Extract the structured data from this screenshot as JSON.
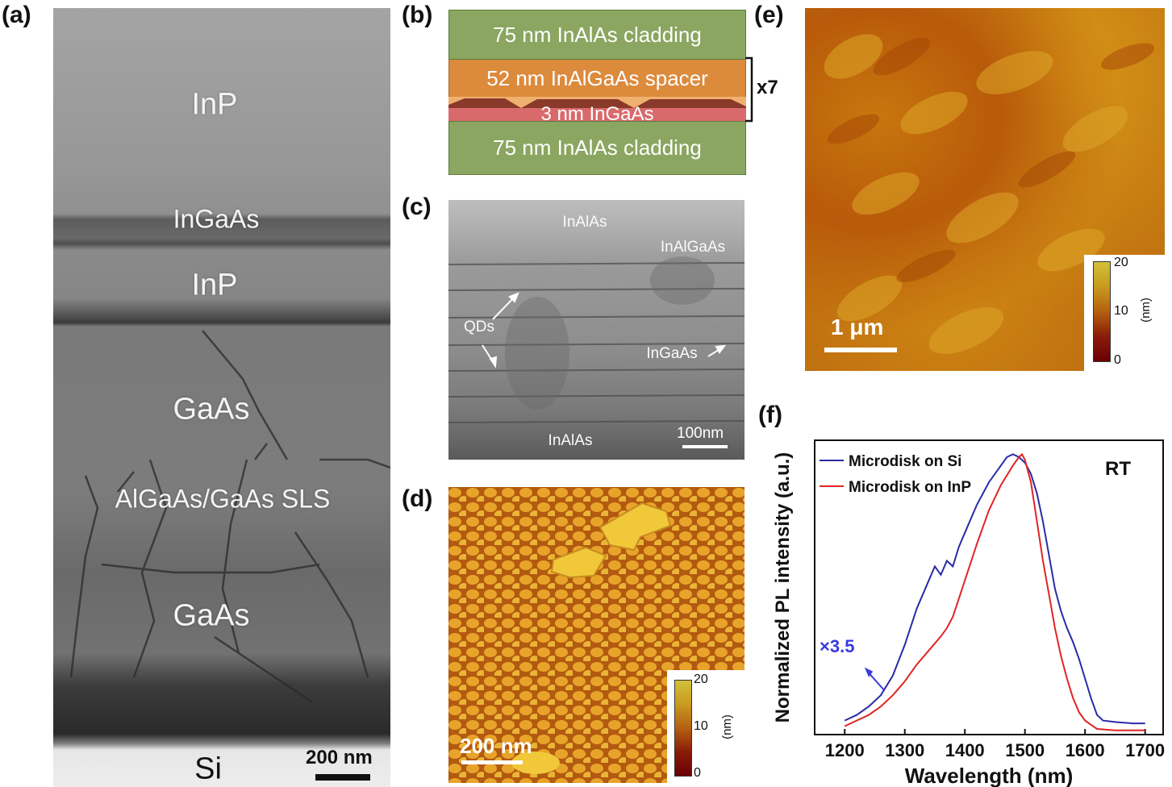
{
  "panels": {
    "a": {
      "label": "(a)",
      "layers": [
        "InP",
        "InGaAs",
        "InP",
        "GaAs",
        "AlGaAs/GaAs SLS",
        "GaAs",
        "Si"
      ],
      "scale_bar": "200 nm"
    },
    "b": {
      "label": "(b)",
      "layers": [
        "75 nm InAlAs cladding",
        "52 nm InAlGaAs spacer",
        "3 nm InGaAs",
        "75 nm InAlAs cladding"
      ],
      "repeat": "x7",
      "colors": {
        "cladding": "#8aa660",
        "spacer": "#dc8a3c",
        "well": "#d96a6c"
      }
    },
    "c": {
      "label": "(c)",
      "annotations": {
        "top": "InAlAs",
        "spacer": "InAlGaAs",
        "qds": "QDs",
        "well": "InGaAs",
        "bottom": "InAlAs"
      },
      "scale_bar": "100nm"
    },
    "d": {
      "label": "(d)",
      "scale_bar": "200 nm",
      "colorbar": {
        "max": "20",
        "mid": "10",
        "min": "0",
        "unit": "(nm)"
      }
    },
    "e": {
      "label": "(e)",
      "scale_bar": "1 μm",
      "colorbar": {
        "max": "20",
        "mid": "10",
        "min": "0",
        "unit": "(nm)"
      }
    },
    "f": {
      "label": "(f)",
      "annotation_rt": "RT",
      "annotation_scale": "×3.5"
    }
  },
  "chart_data": {
    "type": "line",
    "xlabel": "Wavelength (nm)",
    "ylabel": "Normalized PL intensity (a.u.)",
    "xlim": [
      1150,
      1730
    ],
    "ylim": [
      0,
      1.05
    ],
    "xticks": [
      "1200",
      "1300",
      "1400",
      "1500",
      "1600",
      "1700"
    ],
    "legend_position": "top-left",
    "series": [
      {
        "name": "Microdisk on Si",
        "color": "#2a2aa8",
        "points": [
          [
            1200,
            0.05
          ],
          [
            1220,
            0.07
          ],
          [
            1240,
            0.1
          ],
          [
            1260,
            0.14
          ],
          [
            1280,
            0.21
          ],
          [
            1300,
            0.32
          ],
          [
            1320,
            0.45
          ],
          [
            1340,
            0.55
          ],
          [
            1350,
            0.6
          ],
          [
            1360,
            0.57
          ],
          [
            1370,
            0.62
          ],
          [
            1380,
            0.6
          ],
          [
            1390,
            0.67
          ],
          [
            1400,
            0.72
          ],
          [
            1420,
            0.82
          ],
          [
            1440,
            0.9
          ],
          [
            1460,
            0.96
          ],
          [
            1470,
            0.99
          ],
          [
            1480,
            1.0
          ],
          [
            1490,
            0.99
          ],
          [
            1500,
            0.97
          ],
          [
            1510,
            0.93
          ],
          [
            1520,
            0.86
          ],
          [
            1530,
            0.76
          ],
          [
            1540,
            0.64
          ],
          [
            1550,
            0.52
          ],
          [
            1560,
            0.44
          ],
          [
            1570,
            0.38
          ],
          [
            1580,
            0.33
          ],
          [
            1590,
            0.27
          ],
          [
            1600,
            0.2
          ],
          [
            1610,
            0.13
          ],
          [
            1620,
            0.07
          ],
          [
            1630,
            0.05
          ],
          [
            1650,
            0.045
          ],
          [
            1680,
            0.04
          ],
          [
            1700,
            0.04
          ]
        ]
      },
      {
        "name": "Microdisk on InP",
        "color": "#e02424",
        "points": [
          [
            1200,
            0.03
          ],
          [
            1220,
            0.05
          ],
          [
            1240,
            0.07
          ],
          [
            1260,
            0.1
          ],
          [
            1280,
            0.14
          ],
          [
            1300,
            0.19
          ],
          [
            1320,
            0.25
          ],
          [
            1340,
            0.3
          ],
          [
            1360,
            0.35
          ],
          [
            1370,
            0.38
          ],
          [
            1380,
            0.42
          ],
          [
            1400,
            0.55
          ],
          [
            1420,
            0.68
          ],
          [
            1440,
            0.8
          ],
          [
            1460,
            0.89
          ],
          [
            1480,
            0.96
          ],
          [
            1490,
            0.99
          ],
          [
            1495,
            1.0
          ],
          [
            1500,
            0.98
          ],
          [
            1510,
            0.9
          ],
          [
            1520,
            0.76
          ],
          [
            1530,
            0.62
          ],
          [
            1540,
            0.5
          ],
          [
            1550,
            0.38
          ],
          [
            1560,
            0.28
          ],
          [
            1570,
            0.2
          ],
          [
            1580,
            0.13
          ],
          [
            1590,
            0.08
          ],
          [
            1600,
            0.05
          ],
          [
            1610,
            0.035
          ],
          [
            1620,
            0.02
          ],
          [
            1650,
            0.015
          ],
          [
            1680,
            0.015
          ],
          [
            1700,
            0.015
          ]
        ]
      }
    ]
  }
}
